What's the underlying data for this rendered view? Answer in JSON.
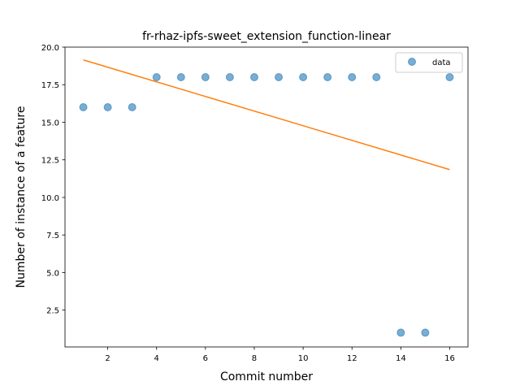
{
  "chart_data": {
    "type": "scatter",
    "title": "fr-rhaz-ipfs-sweet_extension_function-linear",
    "xlabel": "Commit number",
    "ylabel": "Number of instance of a feature",
    "xlim": [
      0.25,
      16.75
    ],
    "ylim": [
      0.05,
      20.0
    ],
    "xticks": [
      2,
      4,
      6,
      8,
      10,
      12,
      14,
      16
    ],
    "xtick_labels": [
      "2",
      "4",
      "6",
      "8",
      "10",
      "12",
      "14",
      "16"
    ],
    "yticks": [
      2.5,
      5.0,
      7.5,
      10.0,
      12.5,
      15.0,
      17.5,
      20.0
    ],
    "ytick_labels": [
      "2.5",
      "5.0",
      "7.5",
      "10.0",
      "12.5",
      "15.0",
      "17.5",
      "20.0"
    ],
    "grid": false,
    "legend_position": "top-right",
    "series": [
      {
        "name": "data",
        "kind": "scatter",
        "color": "#1f77b4",
        "x": [
          1,
          2,
          3,
          4,
          5,
          6,
          7,
          8,
          9,
          10,
          11,
          12,
          13,
          14,
          15,
          16
        ],
        "y": [
          16,
          16,
          16,
          18,
          18,
          18,
          18,
          18,
          18,
          18,
          18,
          18,
          18,
          1,
          1,
          18
        ]
      },
      {
        "kind": "line",
        "color": "#ff7f0e",
        "x": [
          1,
          16
        ],
        "y": [
          19.15,
          11.85
        ]
      }
    ]
  }
}
